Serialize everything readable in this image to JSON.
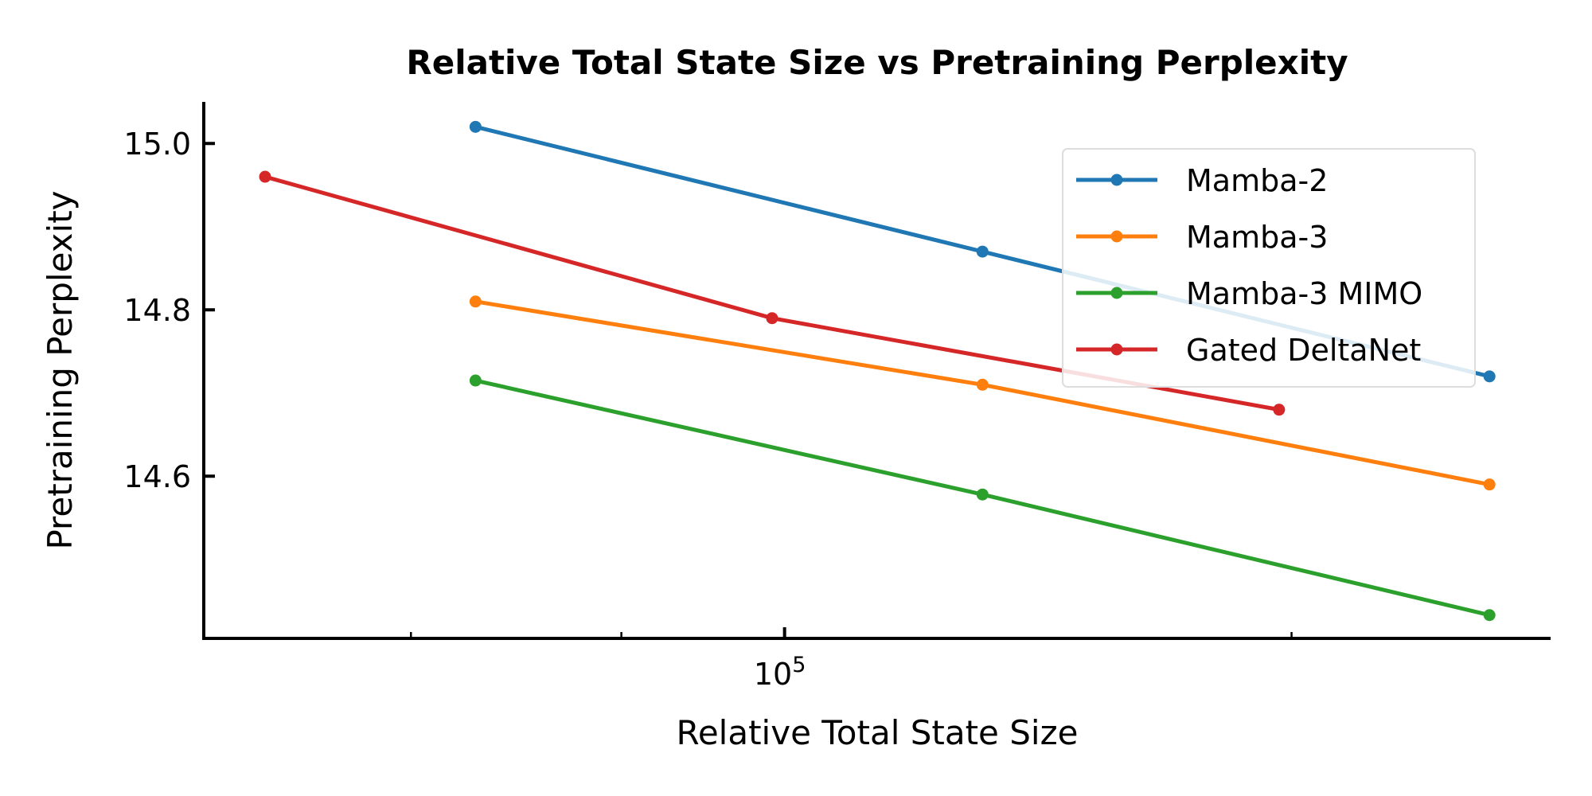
{
  "chart_data": {
    "type": "line",
    "title": "Relative Total State Size vs Pretraining Perplexity",
    "xlabel": "Relative Total State Size",
    "ylabel": "Pretraining Perplexity",
    "xscale": "log",
    "xlim": [
      45200,
      285000
    ],
    "ylim": [
      14.405,
      15.05
    ],
    "x_major_ticks": [
      {
        "value": 100000,
        "label_base": "10",
        "label_exp": "5"
      }
    ],
    "x_minor_ticks": [
      60000,
      80000,
      200000
    ],
    "y_ticks": [
      {
        "value": 15.0,
        "label": "15.0"
      },
      {
        "value": 14.8,
        "label": "14.8"
      },
      {
        "value": 14.6,
        "label": "14.6"
      }
    ],
    "grid": false,
    "legend_position": "upper-right",
    "series": [
      {
        "name": "Mamba-2",
        "color": "#1f77b4",
        "x": [
          65536,
          131072,
          262144
        ],
        "y": [
          15.02,
          14.87,
          14.72
        ]
      },
      {
        "name": "Mamba-3",
        "color": "#ff7f0e",
        "x": [
          65536,
          131072,
          262144
        ],
        "y": [
          14.81,
          14.71,
          14.59
        ]
      },
      {
        "name": "Mamba-3 MIMO",
        "color": "#2ca02c",
        "x": [
          65536,
          131072,
          262144
        ],
        "y": [
          14.715,
          14.578,
          14.433
        ]
      },
      {
        "name": "Gated DeltaNet",
        "color": "#d62728",
        "x": [
          49152,
          98304,
          196608
        ],
        "y": [
          14.96,
          14.79,
          14.68
        ]
      }
    ]
  }
}
